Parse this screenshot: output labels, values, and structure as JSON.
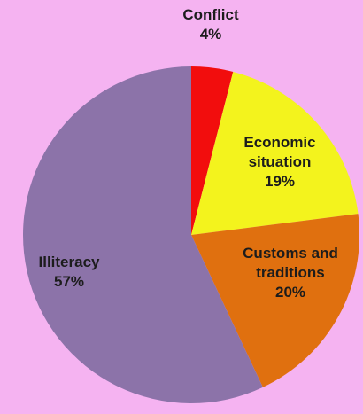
{
  "chart_data": {
    "type": "pie",
    "categories": [
      "Conflict",
      "Economic situation",
      "Customs and traditions",
      "Illiteracy"
    ],
    "values": [
      4,
      19,
      20,
      57
    ],
    "value_labels": [
      "4%",
      "19%",
      "20%",
      "57%"
    ],
    "colors": [
      "#f20d0d",
      "#f3f31d",
      "#e0700f",
      "#8c73a9"
    ]
  }
}
